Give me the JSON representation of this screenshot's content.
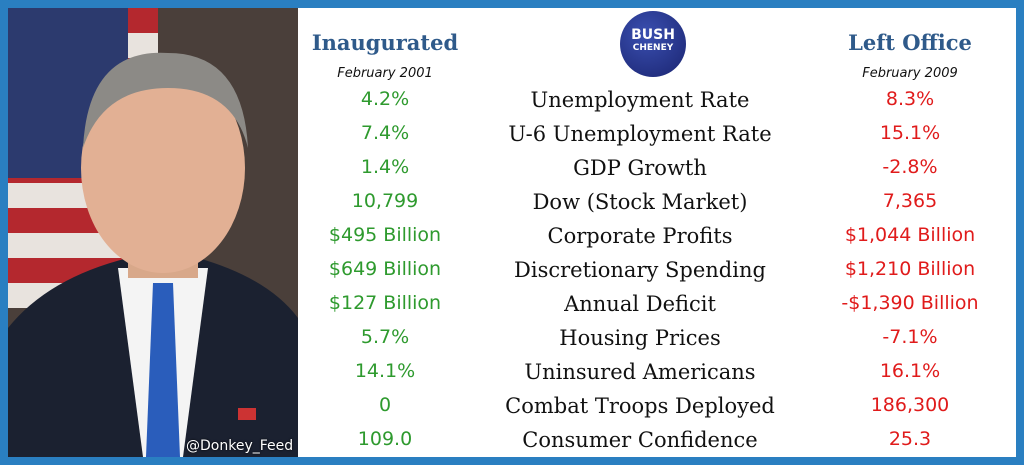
{
  "watermark": "@Donkey_Feed",
  "logo": {
    "line1": "BUSH",
    "line2": "CHENEY"
  },
  "table": {
    "header": {
      "left": {
        "title": "Inaugurated",
        "date": "February 2001"
      },
      "right": {
        "title": "Left Office",
        "date": "February 2009"
      }
    },
    "rows": [
      [
        "4.2%",
        "Unemployment Rate",
        "8.3%"
      ],
      [
        "7.4%",
        "U-6 Unemployment Rate",
        "15.1%"
      ],
      [
        "1.4%",
        "GDP Growth",
        "-2.8%"
      ],
      [
        "10,799",
        "Dow (Stock Market)",
        "7,365"
      ],
      [
        "$495 Billion",
        "Corporate Profits",
        "$1,044 Billion"
      ],
      [
        "$649 Billion",
        "Discretionary Spending",
        "$1,210 Billion"
      ],
      [
        "$127 Billion",
        "Annual Deficit",
        "-$1,390 Billion"
      ],
      [
        "5.7%",
        "Housing Prices",
        "-7.1%"
      ],
      [
        "14.1%",
        "Uninsured Americans",
        "16.1%"
      ],
      [
        "0",
        "Combat Troops Deployed",
        "186,300"
      ],
      [
        "109.0",
        "Consumer Confidence",
        "25.3"
      ]
    ]
  }
}
